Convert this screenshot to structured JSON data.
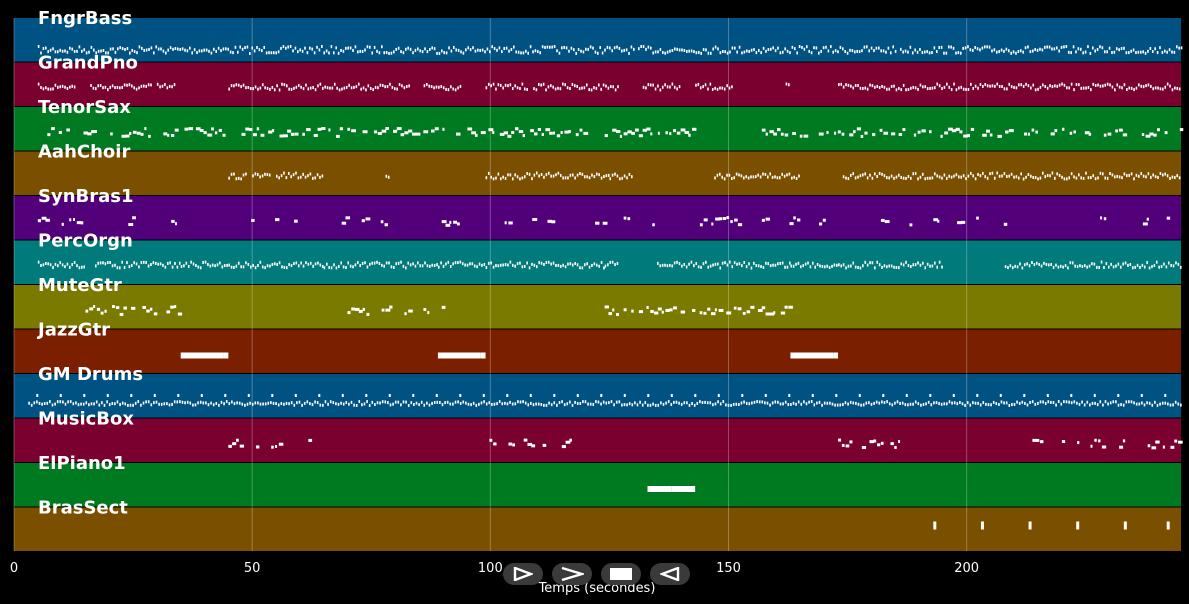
{
  "timeline": {
    "xlabel": "Temps (secondes)",
    "xlim": [
      0,
      245
    ],
    "ticks": [
      0,
      50,
      100,
      150,
      200
    ],
    "tick_labels": [
      "0",
      "50",
      "100",
      "150",
      "200"
    ],
    "grid": true,
    "background": "#000000"
  },
  "tracks": [
    {
      "name": "FngrBass",
      "color": "#005283",
      "notes": [
        [
          5,
          130
        ],
        [
          131,
          185
        ],
        [
          186,
          245
        ]
      ],
      "style": "dense-upper"
    },
    {
      "name": "GrandPno",
      "color": "#7a0030",
      "notes": [
        [
          5,
          13
        ],
        [
          16,
          29
        ],
        [
          30,
          34
        ],
        [
          45,
          83
        ],
        [
          86,
          94
        ],
        [
          99,
          108
        ],
        [
          109,
          127
        ],
        [
          132,
          140
        ],
        [
          143,
          151
        ],
        [
          162,
          163
        ],
        [
          173,
          245
        ]
      ],
      "style": "dense"
    },
    {
      "name": "TenorSax",
      "color": "#007a20",
      "notes": [
        [
          7,
          11
        ],
        [
          13,
          35
        ],
        [
          35,
          65
        ],
        [
          66,
          90
        ],
        [
          92,
          97
        ],
        [
          98,
          120
        ],
        [
          124,
          143
        ],
        [
          157,
          245
        ]
      ],
      "style": "sparse"
    },
    {
      "name": "AahChoir",
      "color": "#7a5000",
      "notes": [
        [
          45,
          49
        ],
        [
          50,
          54
        ],
        [
          55,
          65
        ],
        [
          78,
          79
        ],
        [
          99,
          125
        ],
        [
          125,
          130
        ],
        [
          147,
          165
        ],
        [
          174,
          245
        ]
      ],
      "style": "dense"
    },
    {
      "name": "SynBras1",
      "color": "#52007a",
      "notes": [
        [
          5,
          7
        ],
        [
          10,
          14
        ],
        [
          24,
          25
        ],
        [
          33,
          35
        ],
        [
          49,
          50
        ],
        [
          54,
          55
        ],
        [
          58,
          59
        ],
        [
          68,
          70
        ],
        [
          73,
          74
        ],
        [
          77,
          78
        ],
        [
          89,
          93
        ],
        [
          103,
          104
        ],
        [
          108,
          109
        ],
        [
          112,
          113
        ],
        [
          122,
          124
        ],
        [
          128,
          129
        ],
        [
          134,
          135
        ],
        [
          144,
          152
        ],
        [
          157,
          159
        ],
        [
          162,
          165
        ],
        [
          169,
          170
        ],
        [
          177,
          178
        ],
        [
          182,
          183
        ],
        [
          188,
          189
        ],
        [
          193,
          194
        ],
        [
          198,
          199
        ],
        [
          202,
          203
        ],
        [
          207,
          208
        ],
        [
          217,
          218
        ],
        [
          222,
          223
        ],
        [
          228,
          229
        ],
        [
          237,
          238
        ],
        [
          242,
          243
        ]
      ],
      "style": "sparse"
    },
    {
      "name": "PercOrgn",
      "color": "#007a7a",
      "notes": [
        [
          5,
          15
        ],
        [
          17,
          35
        ],
        [
          35,
          45
        ],
        [
          45,
          65
        ],
        [
          65,
          70
        ],
        [
          70,
          89
        ],
        [
          89,
          99
        ],
        [
          99,
          124
        ],
        [
          124,
          127
        ],
        [
          135,
          163
        ],
        [
          163,
          173
        ],
        [
          173,
          195
        ],
        [
          208,
          245
        ]
      ],
      "style": "dense"
    },
    {
      "name": "MuteGtr",
      "color": "#7a7a00",
      "notes": [
        [
          15,
          30
        ],
        [
          32,
          35
        ],
        [
          70,
          88
        ],
        [
          89,
          90
        ],
        [
          124,
          152
        ],
        [
          153,
          163
        ]
      ],
      "style": "sparse"
    },
    {
      "name": "JazzGtr",
      "color": "#7a2000",
      "notes": [
        [
          35,
          44
        ],
        [
          44,
          45
        ],
        [
          89,
          98
        ],
        [
          98,
          99
        ],
        [
          163,
          172
        ],
        [
          172,
          173
        ]
      ],
      "style": "block"
    },
    {
      "name": "GM Drums",
      "color": "#005283",
      "notes": [
        [
          3,
          245
        ]
      ],
      "style": "drums"
    },
    {
      "name": "MusicBox",
      "color": "#7a0030",
      "notes": [
        [
          45,
          48
        ],
        [
          50,
          52
        ],
        [
          54,
          57
        ],
        [
          61,
          63
        ],
        [
          99,
          101
        ],
        [
          103,
          105
        ],
        [
          107,
          111
        ],
        [
          115,
          118
        ],
        [
          173,
          176
        ],
        [
          178,
          182
        ],
        [
          184,
          187
        ],
        [
          213,
          216
        ],
        [
          220,
          224
        ],
        [
          226,
          229
        ],
        [
          232,
          235
        ],
        [
          238,
          245
        ]
      ],
      "style": "sparse"
    },
    {
      "name": "ElPiano1",
      "color": "#007a20",
      "notes": [
        [
          133,
          138
        ],
        [
          138,
          143
        ]
      ],
      "style": "block"
    },
    {
      "name": "BrasSect",
      "color": "#7a5000",
      "notes": [
        [
          193,
          194
        ],
        [
          203,
          204
        ],
        [
          213,
          214
        ],
        [
          223,
          224
        ],
        [
          233,
          234
        ],
        [
          242,
          243
        ]
      ],
      "style": "stack"
    }
  ],
  "controls": [
    {
      "name": "play-button",
      "icon": "play-icon"
    },
    {
      "name": "forward-button",
      "icon": "forward-icon"
    },
    {
      "name": "stop-button",
      "icon": "stop-icon"
    },
    {
      "name": "rewind-button",
      "icon": "rewind-icon"
    }
  ]
}
